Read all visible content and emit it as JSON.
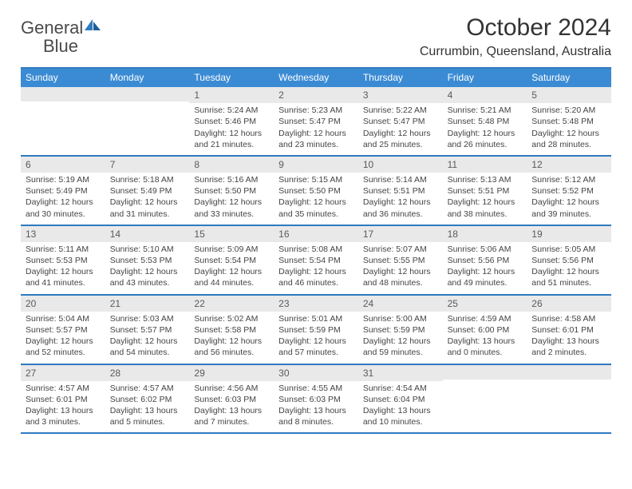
{
  "branding": {
    "logo_word_1": "General",
    "logo_word_2": "Blue",
    "logo_gray_color": "#4a4a4a",
    "logo_blue_color": "#2f7ac0"
  },
  "header": {
    "month_title": "October 2024",
    "location": "Currumbin, Queensland, Australia"
  },
  "colors": {
    "header_band": "#3b8bd4",
    "separator": "#2f7ac0",
    "daynum_band": "#e9e9e9",
    "text": "#333333",
    "cell_text": "#444444",
    "background": "#ffffff"
  },
  "typography": {
    "month_title_size_pt": 22,
    "location_size_pt": 12,
    "day_header_size_pt": 9,
    "daynum_size_pt": 9,
    "body_size_pt": 8
  },
  "day_names": [
    "Sunday",
    "Monday",
    "Tuesday",
    "Wednesday",
    "Thursday",
    "Friday",
    "Saturday"
  ],
  "weeks": [
    [
      {
        "day": "",
        "sunrise": "",
        "sunset": "",
        "daylight": ""
      },
      {
        "day": "",
        "sunrise": "",
        "sunset": "",
        "daylight": ""
      },
      {
        "day": "1",
        "sunrise": "Sunrise: 5:24 AM",
        "sunset": "Sunset: 5:46 PM",
        "daylight": "Daylight: 12 hours and 21 minutes."
      },
      {
        "day": "2",
        "sunrise": "Sunrise: 5:23 AM",
        "sunset": "Sunset: 5:47 PM",
        "daylight": "Daylight: 12 hours and 23 minutes."
      },
      {
        "day": "3",
        "sunrise": "Sunrise: 5:22 AM",
        "sunset": "Sunset: 5:47 PM",
        "daylight": "Daylight: 12 hours and 25 minutes."
      },
      {
        "day": "4",
        "sunrise": "Sunrise: 5:21 AM",
        "sunset": "Sunset: 5:48 PM",
        "daylight": "Daylight: 12 hours and 26 minutes."
      },
      {
        "day": "5",
        "sunrise": "Sunrise: 5:20 AM",
        "sunset": "Sunset: 5:48 PM",
        "daylight": "Daylight: 12 hours and 28 minutes."
      }
    ],
    [
      {
        "day": "6",
        "sunrise": "Sunrise: 5:19 AM",
        "sunset": "Sunset: 5:49 PM",
        "daylight": "Daylight: 12 hours and 30 minutes."
      },
      {
        "day": "7",
        "sunrise": "Sunrise: 5:18 AM",
        "sunset": "Sunset: 5:49 PM",
        "daylight": "Daylight: 12 hours and 31 minutes."
      },
      {
        "day": "8",
        "sunrise": "Sunrise: 5:16 AM",
        "sunset": "Sunset: 5:50 PM",
        "daylight": "Daylight: 12 hours and 33 minutes."
      },
      {
        "day": "9",
        "sunrise": "Sunrise: 5:15 AM",
        "sunset": "Sunset: 5:50 PM",
        "daylight": "Daylight: 12 hours and 35 minutes."
      },
      {
        "day": "10",
        "sunrise": "Sunrise: 5:14 AM",
        "sunset": "Sunset: 5:51 PM",
        "daylight": "Daylight: 12 hours and 36 minutes."
      },
      {
        "day": "11",
        "sunrise": "Sunrise: 5:13 AM",
        "sunset": "Sunset: 5:51 PM",
        "daylight": "Daylight: 12 hours and 38 minutes."
      },
      {
        "day": "12",
        "sunrise": "Sunrise: 5:12 AM",
        "sunset": "Sunset: 5:52 PM",
        "daylight": "Daylight: 12 hours and 39 minutes."
      }
    ],
    [
      {
        "day": "13",
        "sunrise": "Sunrise: 5:11 AM",
        "sunset": "Sunset: 5:53 PM",
        "daylight": "Daylight: 12 hours and 41 minutes."
      },
      {
        "day": "14",
        "sunrise": "Sunrise: 5:10 AM",
        "sunset": "Sunset: 5:53 PM",
        "daylight": "Daylight: 12 hours and 43 minutes."
      },
      {
        "day": "15",
        "sunrise": "Sunrise: 5:09 AM",
        "sunset": "Sunset: 5:54 PM",
        "daylight": "Daylight: 12 hours and 44 minutes."
      },
      {
        "day": "16",
        "sunrise": "Sunrise: 5:08 AM",
        "sunset": "Sunset: 5:54 PM",
        "daylight": "Daylight: 12 hours and 46 minutes."
      },
      {
        "day": "17",
        "sunrise": "Sunrise: 5:07 AM",
        "sunset": "Sunset: 5:55 PM",
        "daylight": "Daylight: 12 hours and 48 minutes."
      },
      {
        "day": "18",
        "sunrise": "Sunrise: 5:06 AM",
        "sunset": "Sunset: 5:56 PM",
        "daylight": "Daylight: 12 hours and 49 minutes."
      },
      {
        "day": "19",
        "sunrise": "Sunrise: 5:05 AM",
        "sunset": "Sunset: 5:56 PM",
        "daylight": "Daylight: 12 hours and 51 minutes."
      }
    ],
    [
      {
        "day": "20",
        "sunrise": "Sunrise: 5:04 AM",
        "sunset": "Sunset: 5:57 PM",
        "daylight": "Daylight: 12 hours and 52 minutes."
      },
      {
        "day": "21",
        "sunrise": "Sunrise: 5:03 AM",
        "sunset": "Sunset: 5:57 PM",
        "daylight": "Daylight: 12 hours and 54 minutes."
      },
      {
        "day": "22",
        "sunrise": "Sunrise: 5:02 AM",
        "sunset": "Sunset: 5:58 PM",
        "daylight": "Daylight: 12 hours and 56 minutes."
      },
      {
        "day": "23",
        "sunrise": "Sunrise: 5:01 AM",
        "sunset": "Sunset: 5:59 PM",
        "daylight": "Daylight: 12 hours and 57 minutes."
      },
      {
        "day": "24",
        "sunrise": "Sunrise: 5:00 AM",
        "sunset": "Sunset: 5:59 PM",
        "daylight": "Daylight: 12 hours and 59 minutes."
      },
      {
        "day": "25",
        "sunrise": "Sunrise: 4:59 AM",
        "sunset": "Sunset: 6:00 PM",
        "daylight": "Daylight: 13 hours and 0 minutes."
      },
      {
        "day": "26",
        "sunrise": "Sunrise: 4:58 AM",
        "sunset": "Sunset: 6:01 PM",
        "daylight": "Daylight: 13 hours and 2 minutes."
      }
    ],
    [
      {
        "day": "27",
        "sunrise": "Sunrise: 4:57 AM",
        "sunset": "Sunset: 6:01 PM",
        "daylight": "Daylight: 13 hours and 3 minutes."
      },
      {
        "day": "28",
        "sunrise": "Sunrise: 4:57 AM",
        "sunset": "Sunset: 6:02 PM",
        "daylight": "Daylight: 13 hours and 5 minutes."
      },
      {
        "day": "29",
        "sunrise": "Sunrise: 4:56 AM",
        "sunset": "Sunset: 6:03 PM",
        "daylight": "Daylight: 13 hours and 7 minutes."
      },
      {
        "day": "30",
        "sunrise": "Sunrise: 4:55 AM",
        "sunset": "Sunset: 6:03 PM",
        "daylight": "Daylight: 13 hours and 8 minutes."
      },
      {
        "day": "31",
        "sunrise": "Sunrise: 4:54 AM",
        "sunset": "Sunset: 6:04 PM",
        "daylight": "Daylight: 13 hours and 10 minutes."
      },
      {
        "day": "",
        "sunrise": "",
        "sunset": "",
        "daylight": ""
      },
      {
        "day": "",
        "sunrise": "",
        "sunset": "",
        "daylight": ""
      }
    ]
  ]
}
